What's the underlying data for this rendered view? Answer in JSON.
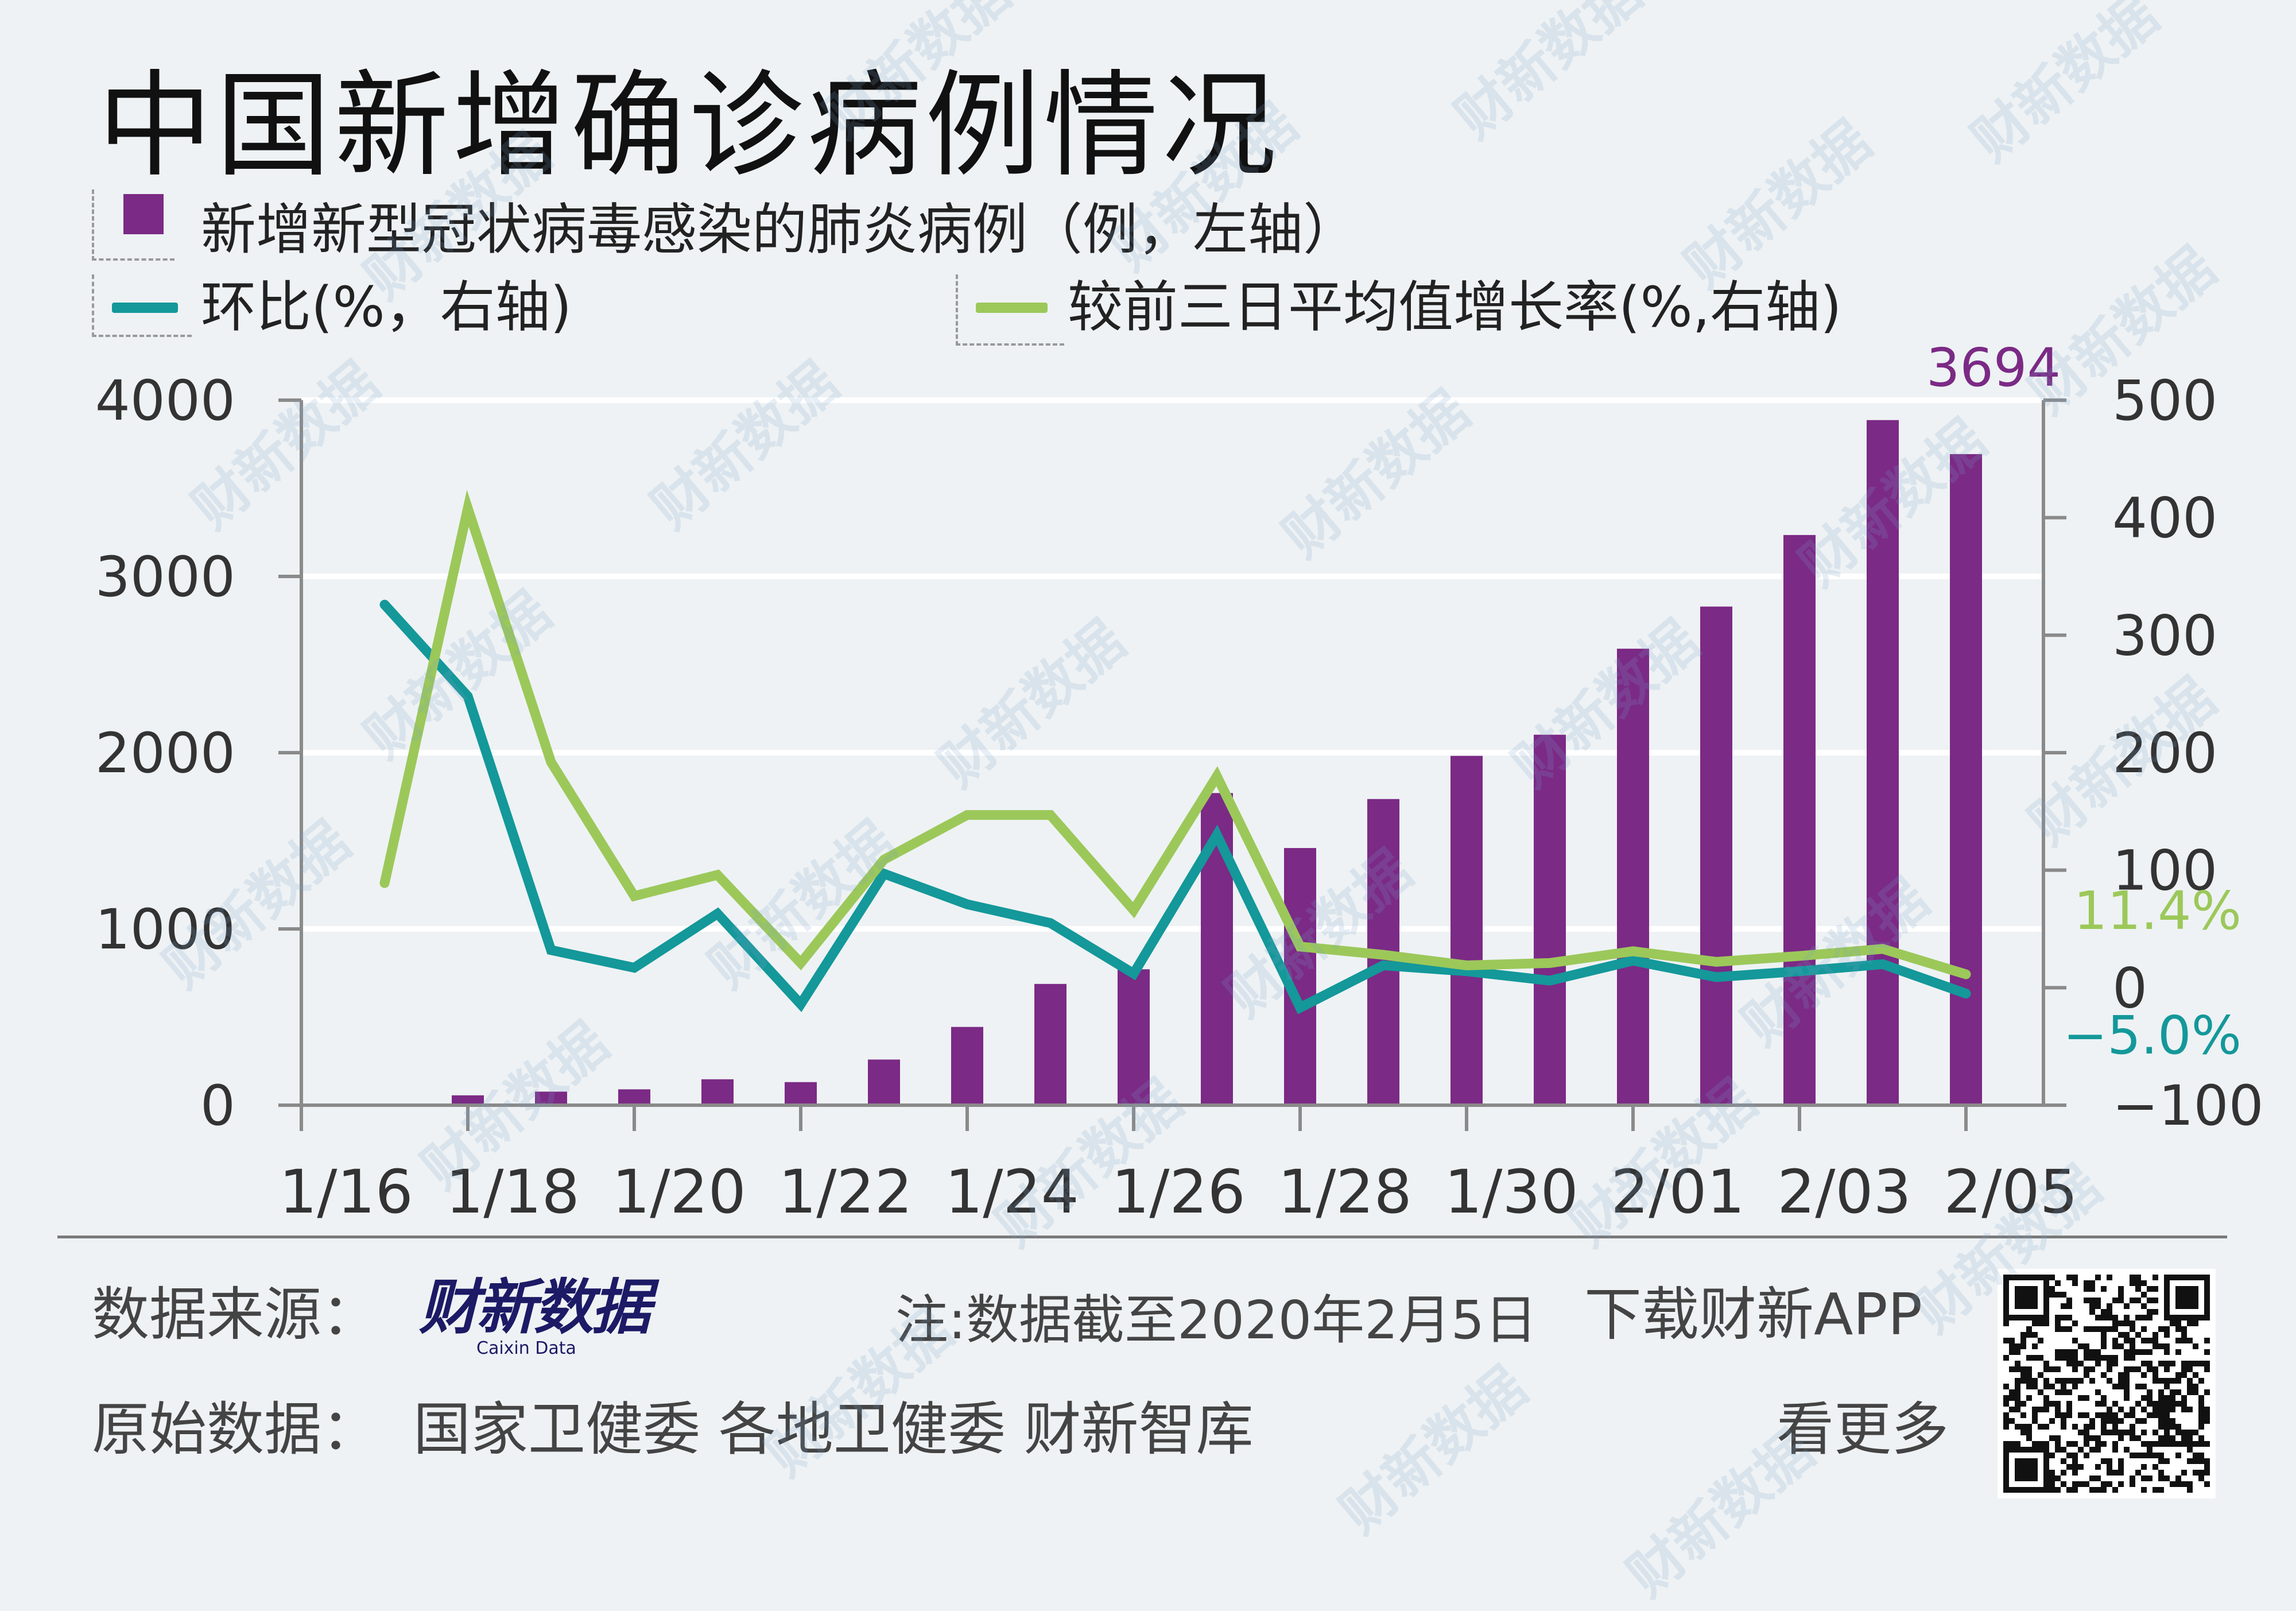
{
  "title": "中国新增确诊病例情况",
  "legend": {
    "bars": "新增新型冠状病毒感染的肺炎病例（例，左轴）",
    "mom": "环比(%，右轴)",
    "three_day": "较前三日平均值增长率(%,右轴)"
  },
  "colors": {
    "bar": "#7b2a85",
    "mom": "#14989a",
    "three_day": "#9cc85a",
    "axis": "#8a8a8a",
    "grid": "#ffffff"
  },
  "chart_data": {
    "type": "bar+line",
    "x": [
      "1/16",
      "1/17",
      "1/18",
      "1/19",
      "1/20",
      "1/21",
      "1/22",
      "1/23",
      "1/24",
      "1/25",
      "1/26",
      "1/27",
      "1/28",
      "1/29",
      "1/30",
      "1/31",
      "2/01",
      "2/02",
      "2/03",
      "2/04",
      "2/05"
    ],
    "x_tick_labels": [
      "1/16",
      "1/18",
      "1/20",
      "1/22",
      "1/24",
      "1/26",
      "1/28",
      "1/30",
      "2/01",
      "2/03",
      "2/05"
    ],
    "left_axis": {
      "min": 0,
      "max": 4000,
      "ticks": [
        "0",
        "1000",
        "2000",
        "3000",
        "4000"
      ]
    },
    "right_axis": {
      "min": -100,
      "max": 500,
      "ticks": [
        "−100",
        "0",
        "100",
        "200",
        "300",
        "400",
        "500"
      ]
    },
    "series": [
      {
        "name": "新增新型冠状病毒感染的肺炎病例（例，左轴）",
        "axis": "left",
        "kind": "bar",
        "values": [
          null,
          null,
          56,
          77,
          90,
          147,
          131,
          259,
          444,
          688,
          771,
          1771,
          1459,
          1737,
          1982,
          2102,
          2590,
          2829,
          3235,
          3887,
          3694
        ]
      },
      {
        "name": "环比(%，右轴)",
        "axis": "right",
        "kind": "line",
        "values": [
          null,
          326,
          248,
          32,
          17,
          63,
          -14,
          97,
          71,
          55,
          12,
          130,
          -17,
          19,
          14,
          6,
          23,
          9,
          14,
          20,
          -5
        ]
      },
      {
        "name": "较前三日平均值增长率(%,右轴)",
        "axis": "right",
        "kind": "line",
        "values": [
          null,
          89,
          408,
          192,
          78,
          96,
          21,
          109,
          147,
          147,
          66,
          180,
          35,
          28,
          19,
          21,
          31,
          22,
          27,
          33,
          11.4
        ]
      }
    ],
    "annotations": {
      "last_bar": "3694",
      "last_three_day": "11.4%",
      "last_mom": "−5.0%"
    }
  },
  "footer": {
    "source_label": "数据来源：",
    "logo_text": "财新数据",
    "logo_sub": "Caixin Data",
    "note": "注:数据截至2020年2月5日",
    "download": "下载财新APP",
    "raw_label": "原始数据：",
    "raw_sources": "国家卫健委  各地卫健委  财新智库",
    "see_more": "看更多"
  },
  "watermark_text": "财新数据"
}
